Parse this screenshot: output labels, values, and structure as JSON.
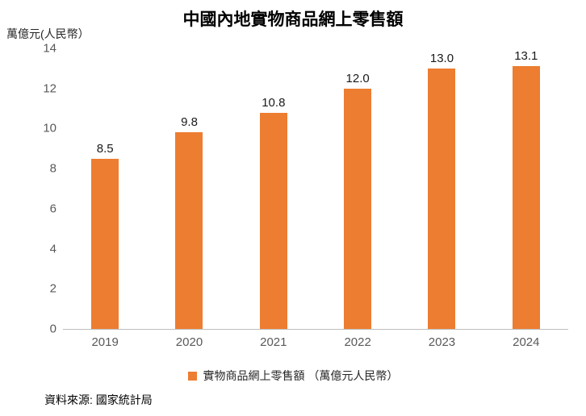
{
  "title": "中國內地實物商品網上零售額",
  "y_unit_label": "萬億元(人民幣）",
  "source": "資料來源: 國家統計局",
  "legend": {
    "label": "實物商品網上零售額 （萬億元人民幣）",
    "color": "#ED7D31"
  },
  "colors": {
    "bar": "#ED7D31",
    "axis": "#BFBFBF",
    "tick_text": "#595959"
  },
  "chart_data": {
    "type": "bar",
    "categories": [
      "2019",
      "2020",
      "2021",
      "2022",
      "2023",
      "2024"
    ],
    "values": [
      8.5,
      9.8,
      10.8,
      12.0,
      13.0,
      13.1
    ],
    "value_labels": [
      "8.5",
      "9.8",
      "10.8",
      "12.0",
      "13.0",
      "13.1"
    ],
    "title": "中國內地實物商品網上零售額",
    "xlabel": "",
    "ylabel": "萬億元(人民幣）",
    "ylim": [
      0,
      14
    ],
    "yticks": [
      0,
      2,
      4,
      6,
      8,
      10,
      12,
      14
    ],
    "grid": false,
    "legend_position": "bottom"
  }
}
